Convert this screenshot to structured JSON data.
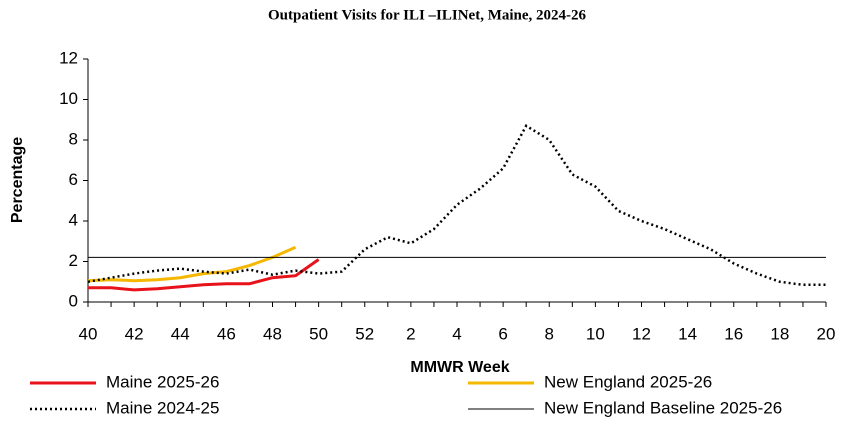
{
  "chart_data": {
    "type": "line",
    "title": "Outpatient Visits for ILI –ILINet, Maine, 2024-26",
    "x_label": "MMWR Week",
    "y_label": "Percentage",
    "categories": [
      "40",
      null,
      "42",
      null,
      "44",
      null,
      "46",
      null,
      "48",
      null,
      "50",
      null,
      "52",
      null,
      "2",
      null,
      "4",
      null,
      "6",
      null,
      "8",
      null,
      "10",
      null,
      "12",
      null,
      "14",
      null,
      "16",
      null,
      "18",
      null,
      "20"
    ],
    "ylim": [
      0,
      12
    ],
    "yticks": [
      0,
      2,
      4,
      6,
      8,
      10,
      12
    ],
    "series": [
      {
        "name": "Maine 2025-26",
        "color": "#e8121b",
        "dash": "solid",
        "width": 3,
        "values": [
          0.7,
          0.7,
          0.6,
          0.65,
          0.75,
          0.85,
          0.9,
          0.9,
          1.2,
          1.3,
          2.1,
          null,
          null,
          null,
          null,
          null,
          null,
          null,
          null,
          null,
          null,
          null,
          null,
          null,
          null,
          null,
          null,
          null,
          null,
          null,
          null,
          null,
          null
        ]
      },
      {
        "name": "New England 2025-26",
        "color": "#f5b800",
        "dash": "solid",
        "width": 3,
        "values": [
          1.05,
          1.1,
          1.05,
          1.1,
          1.2,
          1.4,
          1.5,
          1.8,
          2.2,
          2.7,
          null,
          null,
          null,
          null,
          null,
          null,
          null,
          null,
          null,
          null,
          null,
          null,
          null,
          null,
          null,
          null,
          null,
          null,
          null,
          null,
          null,
          null,
          null
        ]
      },
      {
        "name": "Maine 2024-25",
        "color": "#000000",
        "dash": "dot",
        "width": 2.5,
        "values": [
          1.0,
          1.2,
          1.4,
          1.55,
          1.65,
          1.5,
          1.4,
          1.6,
          1.35,
          1.55,
          1.4,
          1.5,
          2.6,
          3.2,
          2.9,
          3.6,
          4.8,
          5.6,
          6.6,
          8.7,
          8.0,
          6.3,
          5.7,
          4.5,
          4.0,
          3.6,
          3.1,
          2.6,
          1.9,
          1.4,
          1.0,
          0.85,
          0.85
        ]
      },
      {
        "name": "New England Baseline 2025-26",
        "color": "#000000",
        "dash": "solid",
        "width": 1,
        "values": [
          2.2,
          2.2,
          2.2,
          2.2,
          2.2,
          2.2,
          2.2,
          2.2,
          2.2,
          2.2,
          2.2,
          2.2,
          2.2,
          2.2,
          2.2,
          2.2,
          2.2,
          2.2,
          2.2,
          2.2,
          2.2,
          2.2,
          2.2,
          2.2,
          2.2,
          2.2,
          2.2,
          2.2,
          2.2,
          2.2,
          2.2,
          2.2,
          2.2
        ]
      }
    ]
  }
}
